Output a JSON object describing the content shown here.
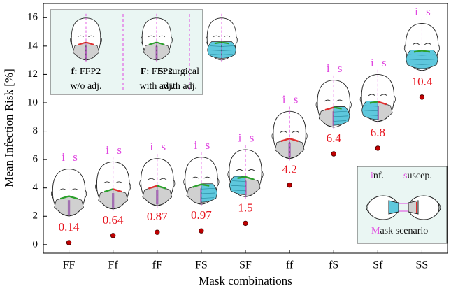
{
  "chart_data": {
    "type": "scatter",
    "x_label": "Mask combinations",
    "y_label": "Mean Infection Risk [%]",
    "categories": [
      "FF",
      "Ff",
      "fF",
      "FS",
      "SF",
      "ff",
      "fS",
      "Sf",
      "SS"
    ],
    "values": [
      0.14,
      0.64,
      0.87,
      0.97,
      1.5,
      4.2,
      6.4,
      6.8,
      10.4
    ],
    "color": "#c00000",
    "label_color": "#e8141e",
    "ylim": [
      -0.6,
      17
    ],
    "yticks": [
      0,
      2,
      4,
      6,
      8,
      10,
      12,
      14,
      16
    ],
    "head_labels": [
      "i",
      "s"
    ],
    "legend": [
      {
        "key": "f",
        "text": ": FFP2",
        "text2": "w/o adj."
      },
      {
        "key": "F",
        "text": ": FFP2",
        "text2": "with adj."
      },
      {
        "key": "S",
        "text": ": surgical",
        "text2": "with adj."
      }
    ],
    "inset": {
      "infected": "inf.",
      "susceptible": "suscep.",
      "title": "Mask scenario"
    }
  }
}
